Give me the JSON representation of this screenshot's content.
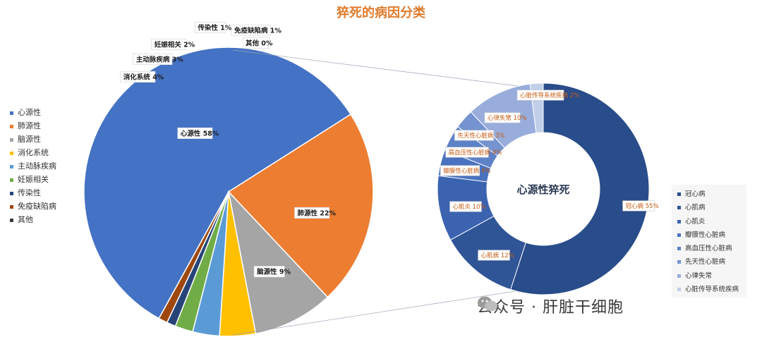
{
  "chart_data": [
    {
      "type": "pie",
      "title": "猝死的病因分类",
      "legend_position": "left",
      "series": [
        {
          "label": "心源性",
          "value": 58,
          "data_label": "心源性 58%",
          "color": "#4472c4"
        },
        {
          "label": "肺源性",
          "value": 22,
          "data_label": "肺源性 22%",
          "color": "#ed7d31"
        },
        {
          "label": "脑源性",
          "value": 9,
          "data_label": "脑源性 9%",
          "color": "#a5a5a5"
        },
        {
          "label": "消化系统",
          "value": 4,
          "data_label": "消化系统 4%",
          "color": "#ffc000"
        },
        {
          "label": "主动脉疾病",
          "value": 3,
          "data_label": "主动脉疾病 3%",
          "color": "#5b9bd5"
        },
        {
          "label": "妊娠相关",
          "value": 2,
          "data_label": "妊娠相关 2%",
          "color": "#70ad47"
        },
        {
          "label": "传染性",
          "value": 1,
          "data_label": "传染性 1%",
          "color": "#264478"
        },
        {
          "label": "免疫缺陷病",
          "value": 1,
          "data_label": "免疫缺陷病 1%",
          "color": "#9e480e"
        },
        {
          "label": "其他",
          "value": 0,
          "data_label": "其他 0%",
          "color": "#3b3b3b"
        }
      ]
    },
    {
      "type": "pie",
      "subtype": "donut",
      "title": "心源性猝死",
      "legend_position": "right",
      "series": [
        {
          "label": "冠心病",
          "value": 55,
          "data_label": "冠心病 55%",
          "color": "#294c8a"
        },
        {
          "label": "心肌病",
          "value": 12,
          "data_label": "心肌病 12%",
          "color": "#2f5597"
        },
        {
          "label": "心肌炎",
          "value": 10,
          "data_label": "心肌炎 10%",
          "color": "#3b63b0"
        },
        {
          "label": "瓣膜性心脏病",
          "value": 4,
          "data_label": "瓣膜性心脏病 4%",
          "color": "#4a72c0"
        },
        {
          "label": "高血压性心脏病",
          "value": 4,
          "data_label": "高血压性心脏病 4%",
          "color": "#5d82c8"
        },
        {
          "label": "先天性心脏病",
          "value": 3,
          "data_label": "先天性心脏病 3%",
          "color": "#7593d0"
        },
        {
          "label": "心律失常",
          "value": 10,
          "data_label": "心律失常 10%",
          "color": "#98addc"
        },
        {
          "label": "心脏传导系统疾病",
          "value": 2,
          "data_label": "心脏传导系统疾病 2%",
          "color": "#c2cfe9"
        }
      ]
    }
  ],
  "watermark": {
    "text": "公众号 · 肝脏干细胞"
  }
}
